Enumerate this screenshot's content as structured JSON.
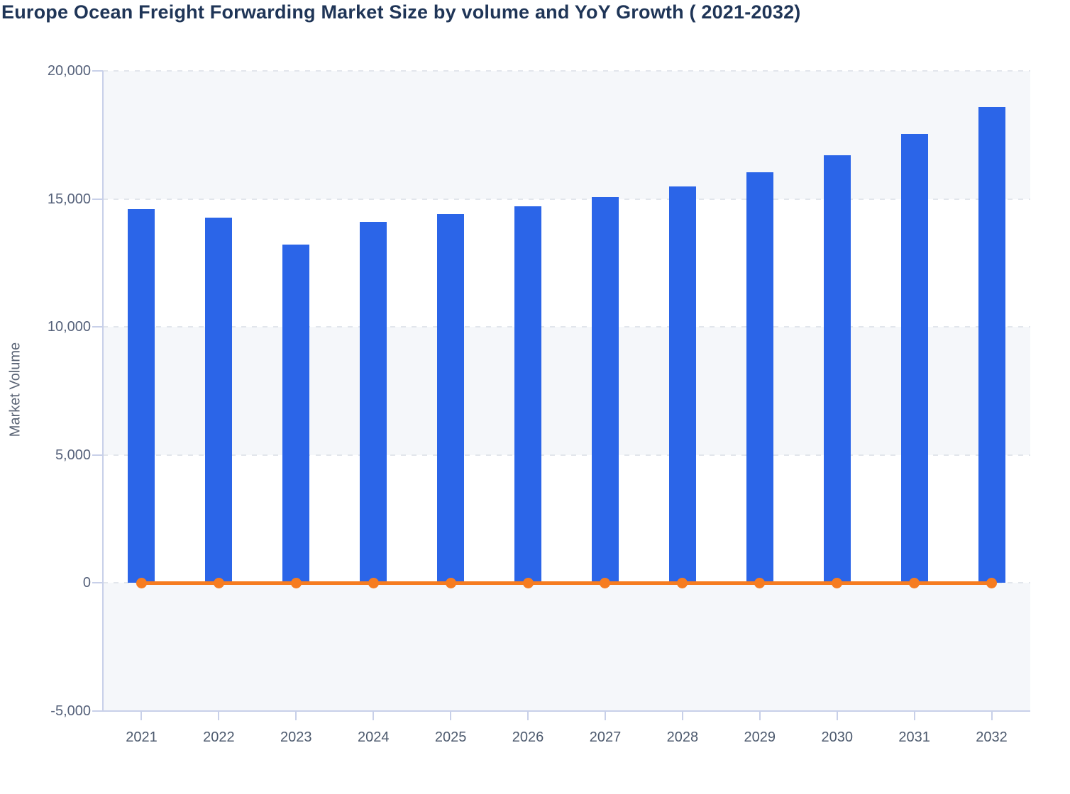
{
  "header": {
    "title": "Europe Ocean Freight Forwarding Market Size by volume and YoY Growth ( 2021-2032)"
  },
  "colors": {
    "bar_blue": "#2B65E8",
    "line_orange": "#F67C20",
    "band_gray": "#F5F7FA",
    "gridline_gray": "#E2E6EC",
    "axis_periwinkle": "#C8D0E9",
    "title_navy": "#1F3557",
    "tick_label_slate": "#55617A"
  },
  "chart_data": {
    "type": "bar",
    "subtype": "combo-bar-line",
    "title": "Europe Ocean Freight Forwarding Market Size by volume and YoY Growth ( 2021-2032)",
    "xlabel": "",
    "ylabel": "Market Volume",
    "categories": [
      "2021",
      "2022",
      "2023",
      "2024",
      "2025",
      "2026",
      "2027",
      "2028",
      "2029",
      "2030",
      "2031",
      "2032"
    ],
    "series": [
      {
        "name": "Market Size by volume",
        "type": "bar",
        "color": "#2B65E8",
        "values": [
          14600,
          14280,
          13210,
          14100,
          14400,
          14700,
          15060,
          15500,
          16030,
          16700,
          17530,
          18600
        ]
      },
      {
        "name": "YoY Growth",
        "type": "line",
        "color": "#F67C20",
        "values": [
          0,
          0,
          0,
          0,
          0,
          0,
          0,
          0,
          0,
          0,
          0,
          0
        ]
      }
    ],
    "ylim": [
      -5000,
      20000
    ],
    "yticks": [
      -5000,
      0,
      5000,
      10000,
      15000,
      20000
    ],
    "ytick_labels": [
      "-5,000",
      "0",
      "5,000",
      "10,000",
      "15,000",
      "20,000"
    ],
    "grid": "horizontal-dashed",
    "legend_position": "none",
    "plot_background": "alternating-horizontal-bands"
  }
}
